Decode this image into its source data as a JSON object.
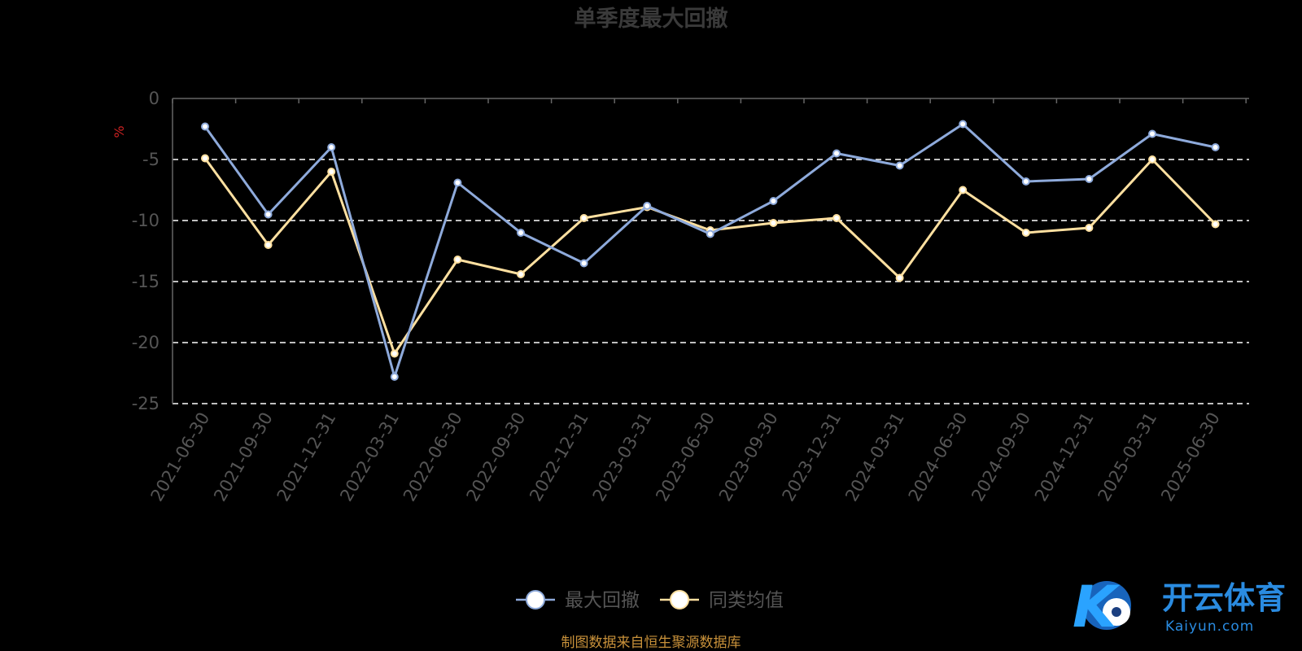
{
  "chart_data": {
    "type": "line",
    "title": "单季度最大回撤",
    "ylabel": "%",
    "ylim": [
      -25,
      0
    ],
    "yticks": [
      0,
      -5,
      -10,
      -15,
      -20,
      -25
    ],
    "grid": true,
    "legend_position": "bottom-center",
    "categories": [
      "2021-06-30",
      "2021-09-30",
      "2021-12-31",
      "2022-03-31",
      "2022-06-30",
      "2022-09-30",
      "2022-12-31",
      "2023-03-31",
      "2023-06-30",
      "2023-09-30",
      "2023-12-31",
      "2024-03-31",
      "2024-06-30",
      "2024-09-30",
      "2024-12-31",
      "2025-03-31",
      "2025-06-30"
    ],
    "series": [
      {
        "name": "最大回撤",
        "color": "#8eaadb",
        "values": [
          -2.3,
          -9.5,
          -4.0,
          -22.8,
          -6.9,
          -11.0,
          -13.5,
          -8.8,
          -11.1,
          -8.4,
          -4.5,
          -5.5,
          -2.1,
          -6.8,
          -6.6,
          -2.9,
          -4.0
        ]
      },
      {
        "name": "同类均值",
        "color": "#ffe0a0",
        "values": [
          -4.9,
          -12.0,
          -6.0,
          -20.9,
          -13.2,
          -14.4,
          -9.8,
          -8.9,
          -10.8,
          -10.2,
          -9.8,
          -14.7,
          -7.5,
          -11.0,
          -10.6,
          -5.0,
          -10.3
        ]
      }
    ]
  },
  "footer": {
    "source_text": "制图数据来自恒生聚源数据库"
  },
  "watermark": {
    "brand_cn": "开云体育",
    "brand_en": "Kaiyun.com",
    "logo_letter": "K"
  },
  "colors": {
    "title": "#3a3a3a",
    "axis_text": "#555555",
    "ylabel": "#cc2222",
    "grid": "#ffffff",
    "axis": "#666666",
    "source": "#c8913a",
    "brand": "#2a8be0"
  }
}
